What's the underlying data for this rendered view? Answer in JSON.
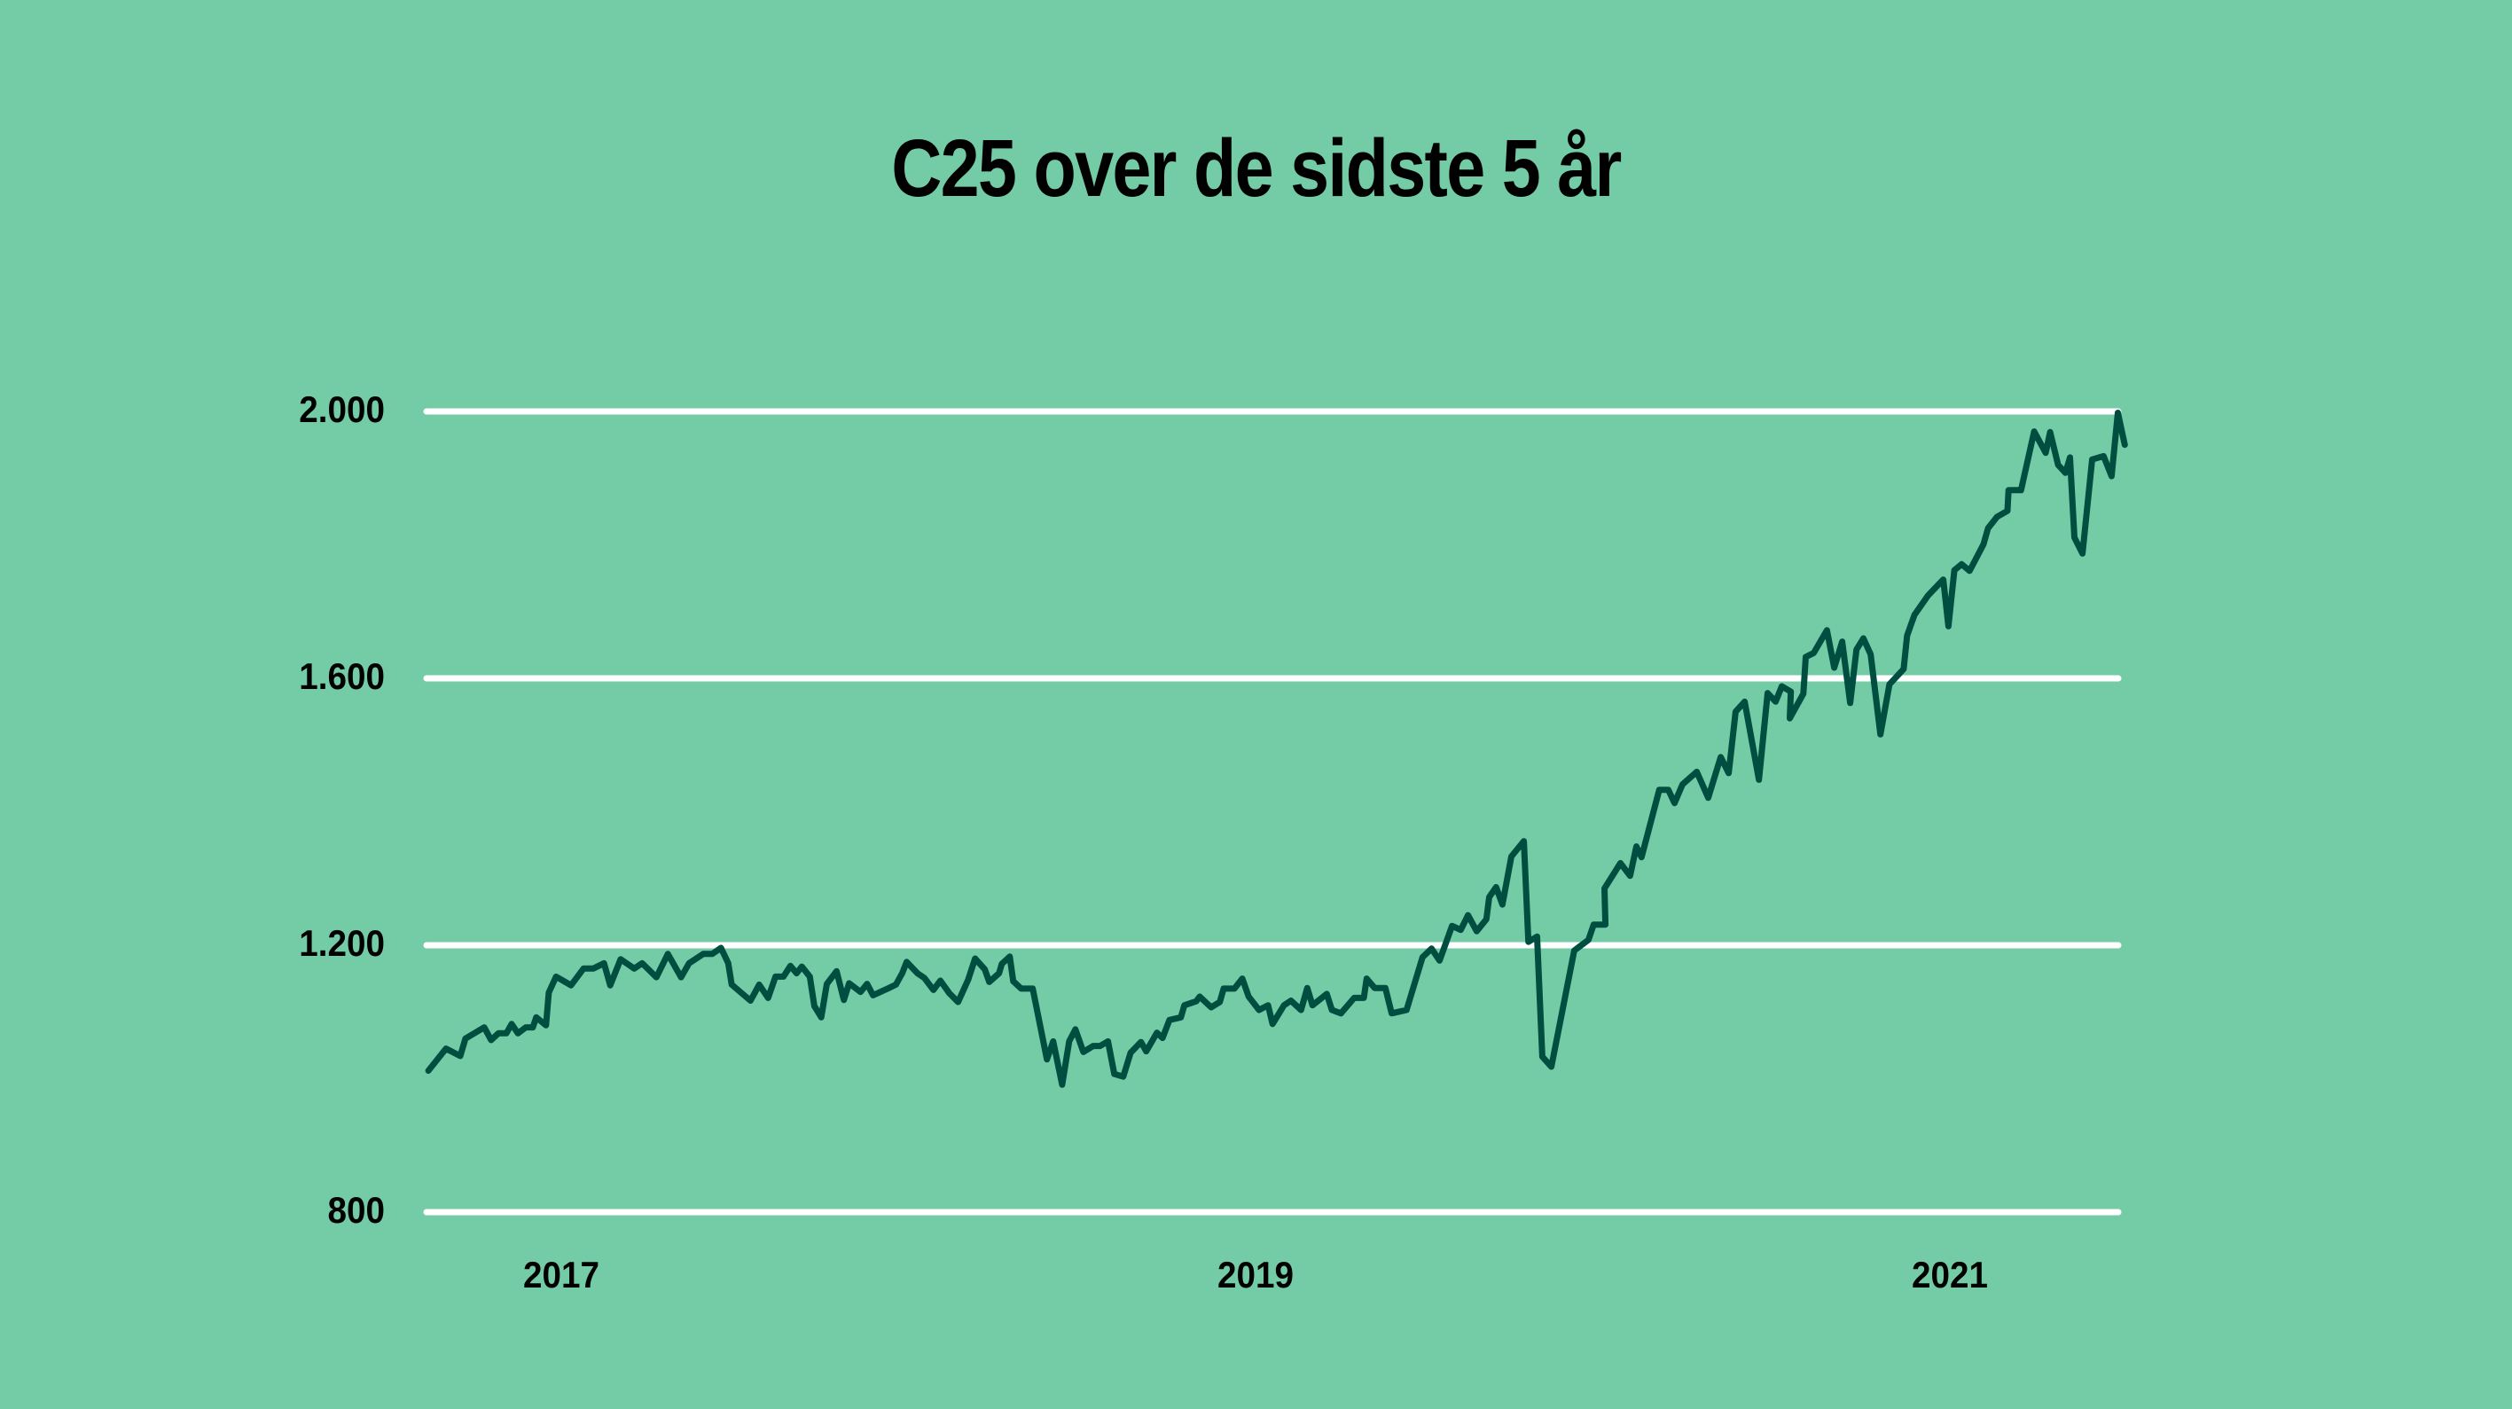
{
  "title": "C25 over de sidste 5 år",
  "colors": {
    "background": "#74cca6",
    "line": "#004e3f",
    "grid": "#ffffff",
    "text": "#000000"
  },
  "y_axis": {
    "ticks": [
      {
        "value": 2000,
        "label": "2.000"
      },
      {
        "value": 1600,
        "label": "1.600"
      },
      {
        "value": 1200,
        "label": "1.200"
      },
      {
        "value": 800,
        "label": "800"
      }
    ]
  },
  "x_axis": {
    "ticks": [
      {
        "value": 2017,
        "label": "2017"
      },
      {
        "value": 2019,
        "label": "2019"
      },
      {
        "value": 2021,
        "label": "2021"
      }
    ]
  },
  "chart_data": {
    "type": "line",
    "title": "C25 over de sidste 5 år",
    "xlabel": "",
    "ylabel": "",
    "ylim": [
      800,
      2000
    ],
    "xlim": [
      2016.62,
      2021.48
    ],
    "grid": "horizontal",
    "legend": "none",
    "x_tick_labels": [
      "2017",
      "2019",
      "2021"
    ],
    "y_tick_labels": [
      "800",
      "1.200",
      "1.600",
      "2.000"
    ],
    "series": [
      {
        "name": "C25",
        "points": [
          [
            2016.617,
            1012
          ],
          [
            2016.668,
            1045
          ],
          [
            2016.709,
            1034
          ],
          [
            2016.724,
            1060
          ],
          [
            2016.778,
            1077
          ],
          [
            2016.798,
            1058
          ],
          [
            2016.819,
            1068
          ],
          [
            2016.842,
            1068
          ],
          [
            2016.857,
            1082
          ],
          [
            2016.875,
            1068
          ],
          [
            2016.898,
            1077
          ],
          [
            2016.918,
            1077
          ],
          [
            2016.928,
            1092
          ],
          [
            2016.956,
            1080
          ],
          [
            2016.964,
            1129
          ],
          [
            2016.985,
            1153
          ],
          [
            2017.028,
            1140
          ],
          [
            2017.064,
            1165
          ],
          [
            2017.092,
            1165
          ],
          [
            2017.123,
            1173
          ],
          [
            2017.141,
            1140
          ],
          [
            2017.171,
            1179
          ],
          [
            2017.21,
            1165
          ],
          [
            2017.233,
            1173
          ],
          [
            2017.274,
            1152
          ],
          [
            2017.307,
            1187
          ],
          [
            2017.345,
            1152
          ],
          [
            2017.368,
            1173
          ],
          [
            2017.409,
            1187
          ],
          [
            2017.435,
            1187
          ],
          [
            2017.46,
            1196
          ],
          [
            2017.481,
            1173
          ],
          [
            2017.491,
            1141
          ],
          [
            2017.545,
            1117
          ],
          [
            2017.57,
            1141
          ],
          [
            2017.596,
            1121
          ],
          [
            2017.617,
            1153
          ],
          [
            2017.64,
            1153
          ],
          [
            2017.66,
            1169
          ],
          [
            2017.678,
            1158
          ],
          [
            2017.693,
            1168
          ],
          [
            2017.716,
            1153
          ],
          [
            2017.729,
            1109
          ],
          [
            2017.749,
            1092
          ],
          [
            2017.765,
            1142
          ],
          [
            2017.793,
            1161
          ],
          [
            2017.814,
            1118
          ],
          [
            2017.829,
            1143
          ],
          [
            2017.862,
            1130
          ],
          [
            2017.881,
            1142
          ],
          [
            2017.898,
            1125
          ],
          [
            2017.944,
            1136
          ],
          [
            2017.964,
            1141
          ],
          [
            2017.982,
            1158
          ],
          [
            2017.995,
            1175
          ],
          [
            2018.026,
            1158
          ],
          [
            2018.046,
            1151
          ],
          [
            2018.072,
            1133
          ],
          [
            2018.092,
            1147
          ],
          [
            2018.118,
            1128
          ],
          [
            2018.143,
            1115
          ],
          [
            2018.172,
            1148
          ],
          [
            2018.192,
            1180
          ],
          [
            2018.22,
            1164
          ],
          [
            2018.233,
            1145
          ],
          [
            2018.261,
            1158
          ],
          [
            2018.269,
            1172
          ],
          [
            2018.292,
            1183
          ],
          [
            2018.302,
            1146
          ],
          [
            2018.325,
            1135
          ],
          [
            2018.358,
            1135
          ],
          [
            2018.399,
            1029
          ],
          [
            2018.417,
            1056
          ],
          [
            2018.443,
            991
          ],
          [
            2018.463,
            1056
          ],
          [
            2018.481,
            1074
          ],
          [
            2018.504,
            1040
          ],
          [
            2018.532,
            1049
          ],
          [
            2018.552,
            1049
          ],
          [
            2018.575,
            1056
          ],
          [
            2018.593,
            1007
          ],
          [
            2018.619,
            1003
          ],
          [
            2018.64,
            1039
          ],
          [
            2018.67,
            1055
          ],
          [
            2018.685,
            1041
          ],
          [
            2018.716,
            1069
          ],
          [
            2018.732,
            1061
          ],
          [
            2018.752,
            1088
          ],
          [
            2018.785,
            1092
          ],
          [
            2018.795,
            1110
          ],
          [
            2018.829,
            1116
          ],
          [
            2018.839,
            1123
          ],
          [
            2018.872,
            1107
          ],
          [
            2018.897,
            1115
          ],
          [
            2018.908,
            1135
          ],
          [
            2018.939,
            1135
          ],
          [
            2018.962,
            1150
          ],
          [
            2018.98,
            1123
          ],
          [
            2019.01,
            1103
          ],
          [
            2019.036,
            1110
          ],
          [
            2019.049,
            1082
          ],
          [
            2019.082,
            1110
          ],
          [
            2019.102,
            1117
          ],
          [
            2019.131,
            1103
          ],
          [
            2019.149,
            1136
          ],
          [
            2019.164,
            1110
          ],
          [
            2019.205,
            1127
          ],
          [
            2019.22,
            1103
          ],
          [
            2019.246,
            1098
          ],
          [
            2019.284,
            1121
          ],
          [
            2019.312,
            1121
          ],
          [
            2019.32,
            1150
          ],
          [
            2019.343,
            1136
          ],
          [
            2019.374,
            1136
          ],
          [
            2019.392,
            1098
          ],
          [
            2019.435,
            1103
          ],
          [
            2019.481,
            1182
          ],
          [
            2019.507,
            1195
          ],
          [
            2019.53,
            1177
          ],
          [
            2019.566,
            1229
          ],
          [
            2019.591,
            1223
          ],
          [
            2019.612,
            1245
          ],
          [
            2019.637,
            1221
          ],
          [
            2019.665,
            1239
          ],
          [
            2019.673,
            1272
          ],
          [
            2019.693,
            1287
          ],
          [
            2019.711,
            1261
          ],
          [
            2019.737,
            1333
          ],
          [
            2019.773,
            1356
          ],
          [
            2019.786,
            1205
          ],
          [
            2019.811,
            1213
          ],
          [
            2019.826,
            1033
          ],
          [
            2019.852,
            1018
          ],
          [
            2019.918,
            1192
          ],
          [
            2019.959,
            1208
          ],
          [
            2019.974,
            1231
          ],
          [
            2020.008,
            1231
          ],
          [
            2020.005,
            1285
          ],
          [
            2020.051,
            1323
          ],
          [
            2020.079,
            1304
          ],
          [
            2020.097,
            1348
          ],
          [
            2020.112,
            1332
          ],
          [
            2020.163,
            1433
          ],
          [
            2020.189,
            1433
          ],
          [
            2020.207,
            1413
          ],
          [
            2020.23,
            1441
          ],
          [
            2020.271,
            1460
          ],
          [
            2020.304,
            1421
          ],
          [
            2020.34,
            1482
          ],
          [
            2020.363,
            1458
          ],
          [
            2020.383,
            1550
          ],
          [
            2020.409,
            1565
          ],
          [
            2020.45,
            1448
          ],
          [
            2020.475,
            1578
          ],
          [
            2020.498,
            1565
          ],
          [
            2020.516,
            1588
          ],
          [
            2020.542,
            1580
          ],
          [
            2020.539,
            1540
          ],
          [
            2020.578,
            1577
          ],
          [
            2020.585,
            1632
          ],
          [
            2020.608,
            1638
          ],
          [
            2020.646,
            1672
          ],
          [
            2020.667,
            1616
          ],
          [
            2020.69,
            1655
          ],
          [
            2020.713,
            1563
          ],
          [
            2020.731,
            1643
          ],
          [
            2020.751,
            1660
          ],
          [
            2020.772,
            1636
          ],
          [
            2020.8,
            1516
          ],
          [
            2020.826,
            1591
          ],
          [
            2020.867,
            1614
          ],
          [
            2020.877,
            1664
          ],
          [
            2020.898,
            1695
          ],
          [
            2020.937,
            1724
          ],
          [
            2020.981,
            1748
          ],
          [
            2020.996,
            1678
          ],
          [
            2021.013,
            1762
          ],
          [
            2021.034,
            1771
          ],
          [
            2021.057,
            1761
          ],
          [
            2021.097,
            1801
          ],
          [
            2021.11,
            1825
          ],
          [
            2021.136,
            1842
          ],
          [
            2021.166,
            1851
          ],
          [
            2021.169,
            1882
          ],
          [
            2021.205,
            1882
          ],
          [
            2021.243,
            1970
          ],
          [
            2021.276,
            1938
          ],
          [
            2021.289,
            1969
          ],
          [
            2021.312,
            1920
          ],
          [
            2021.333,
            1908
          ],
          [
            2021.346,
            1931
          ],
          [
            2021.359,
            1811
          ],
          [
            2021.382,
            1787
          ],
          [
            2021.41,
            1928
          ],
          [
            2021.443,
            1933
          ],
          [
            2021.466,
            1903
          ],
          [
            2021.484,
            1998
          ],
          [
            2021.504,
            1950
          ]
        ]
      }
    ]
  }
}
